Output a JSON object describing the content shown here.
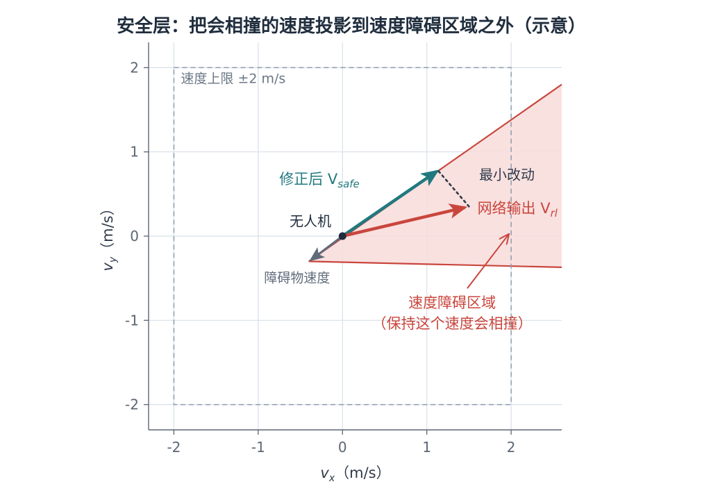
{
  "chart_data": {
    "type": "line",
    "title": "安全层：把会相撞的速度投影到速度障碍区域之外（示意）",
    "xlabel_var": "v",
    "xlabel_sub": "x",
    "xlabel_unit": "（m/s）",
    "ylabel_var": "v",
    "ylabel_sub": "y",
    "ylabel_unit": "（m/s）",
    "xlim": [
      -2.3,
      2.6
    ],
    "ylim": [
      -2.3,
      2.3
    ],
    "xticks": [
      -2,
      -1,
      0,
      1,
      2
    ],
    "yticks": [
      -2,
      -1,
      0,
      1,
      2
    ],
    "grid": true,
    "speed_limit": {
      "label": "速度上限 ±2 m/s",
      "xmin": -2,
      "xmax": 2,
      "ymin": -2,
      "ymax": 2,
      "color": "#8a9bb0"
    },
    "obstacle_cone": {
      "apex": [
        -0.4,
        -0.3
      ],
      "upper_end": [
        2.6,
        1.8
      ],
      "lower_end": [
        2.6,
        -0.37
      ],
      "label_line1": "速度障碍区域",
      "label_line2": "（保持这个速度会相撞）",
      "label_pos": [
        1.3,
        -0.85
      ],
      "arrow_from": [
        1.48,
        -0.62
      ],
      "arrow_to": [
        1.97,
        0.02
      ],
      "color": "#c9463d",
      "fill": "#f8dcda"
    },
    "drone": {
      "label": "无人机",
      "position": [
        0,
        0
      ],
      "label_pos": [
        -0.38,
        0.12
      ],
      "color": "#1f2d3d"
    },
    "vectors": [
      {
        "id": "safe",
        "label_main": "修正后 V",
        "label_sub": "safe",
        "from": [
          0,
          0
        ],
        "to": [
          1.12,
          0.77
        ],
        "label_pos": [
          -0.75,
          0.62
        ],
        "color": "#21797f"
      },
      {
        "id": "rl",
        "label_main": "网络输出 V",
        "label_sub": "rl",
        "from": [
          0,
          0
        ],
        "to": [
          1.45,
          0.34
        ],
        "label_pos": [
          1.6,
          0.27
        ],
        "color": "#c9463d"
      },
      {
        "id": "obstacle",
        "label_main": "障碍物速度",
        "label_sub": "",
        "from": [
          0,
          0
        ],
        "to": [
          -0.37,
          -0.28
        ],
        "label_pos": [
          -0.93,
          -0.55
        ],
        "color": "#5f6b7a"
      }
    ],
    "min_change": {
      "label": "最小改动",
      "from": [
        1.14,
        0.77
      ],
      "to": [
        1.51,
        0.34
      ],
      "label_pos": [
        1.62,
        0.67
      ],
      "color": "#2f3b4a"
    }
  }
}
